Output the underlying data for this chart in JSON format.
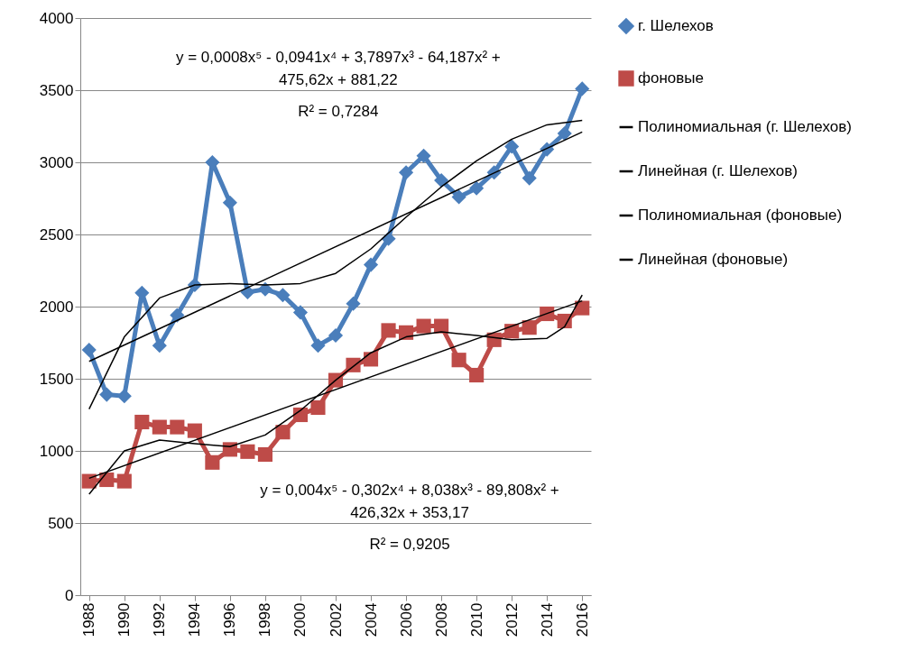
{
  "chart_data": {
    "type": "line",
    "x": [
      1988,
      1989,
      1990,
      1991,
      1992,
      1993,
      1994,
      1995,
      1996,
      1997,
      1998,
      1999,
      2000,
      2001,
      2002,
      2003,
      2004,
      2005,
      2006,
      2007,
      2008,
      2009,
      2010,
      2011,
      2012,
      2013,
      2014,
      2015,
      2016
    ],
    "xlim": [
      1987.5,
      2016.5
    ],
    "xticks": [
      1988,
      1990,
      1992,
      1994,
      1996,
      1998,
      2000,
      2002,
      2004,
      2006,
      2008,
      2010,
      2012,
      2014,
      2016
    ],
    "ylim": [
      0,
      4000
    ],
    "yticks": [
      0,
      500,
      1000,
      1500,
      2000,
      2500,
      3000,
      3500,
      4000
    ],
    "grid": "y",
    "legend": "right",
    "line_style": "solid",
    "series": [
      {
        "name": "г. Шелехов",
        "color": "#4a7ebb",
        "marker": "diamond",
        "values": [
          1700,
          1390,
          1380,
          2095,
          1730,
          1940,
          2150,
          3000,
          2720,
          2100,
          2120,
          2080,
          1960,
          1730,
          1800,
          2020,
          2290,
          2470,
          2930,
          3045,
          2875,
          2760,
          2820,
          2930,
          3110,
          2890,
          3090,
          3200,
          3510
        ]
      },
      {
        "name": "фоновые",
        "color": "#be4b48",
        "marker": "square",
        "values": [
          790,
          800,
          790,
          1200,
          1165,
          1165,
          1140,
          920,
          1010,
          995,
          975,
          1130,
          1250,
          1300,
          1490,
          1595,
          1635,
          1835,
          1820,
          1865,
          1865,
          1630,
          1525,
          1770,
          1830,
          1855,
          1950,
          1900,
          1990
        ]
      },
      {
        "name": "Полиномиальная (г. Шелехов)",
        "type": "line",
        "color": "#000000",
        "x": [
          1988,
          1990,
          1992,
          1994,
          1996,
          1998,
          2000,
          2002,
          2004,
          2006,
          2008,
          2010,
          2012,
          2014,
          2016
        ],
        "values": [
          1290,
          1790,
          2060,
          2150,
          2160,
          2150,
          2160,
          2230,
          2400,
          2620,
          2830,
          3010,
          3160,
          3260,
          3290
        ]
      },
      {
        "name": "Линейная (г. Шелехов)",
        "type": "line",
        "color": "#000000",
        "x": [
          1988,
          2016
        ],
        "values": [
          1620,
          3210
        ]
      },
      {
        "name": "Полиномиальная (фоновые)",
        "type": "line",
        "color": "#000000",
        "x": [
          1988,
          1990,
          1992,
          1994,
          1996,
          1998,
          2000,
          2002,
          2004,
          2006,
          2008,
          2010,
          2012,
          2014,
          2015,
          2016
        ],
        "values": [
          700,
          1000,
          1075,
          1050,
          1030,
          1110,
          1280,
          1490,
          1680,
          1790,
          1825,
          1800,
          1770,
          1780,
          1860,
          2080
        ]
      },
      {
        "name": "Линейная (фоновые)",
        "type": "line",
        "color": "#000000",
        "x": [
          1988,
          2016
        ],
        "values": [
          810,
          2040
        ]
      }
    ],
    "annotations": [
      "y = 0,0008x⁵ - 0,0941x⁴ + 3,7897x³ - 64,187x² +\n475,62x + 881,22",
      "R² = 0,7284",
      "y = 0,004x⁵ - 0,302x⁴ + 8,038x³ - 89,808x² +\n426,32x + 353,17",
      "R² = 0,9205"
    ]
  }
}
